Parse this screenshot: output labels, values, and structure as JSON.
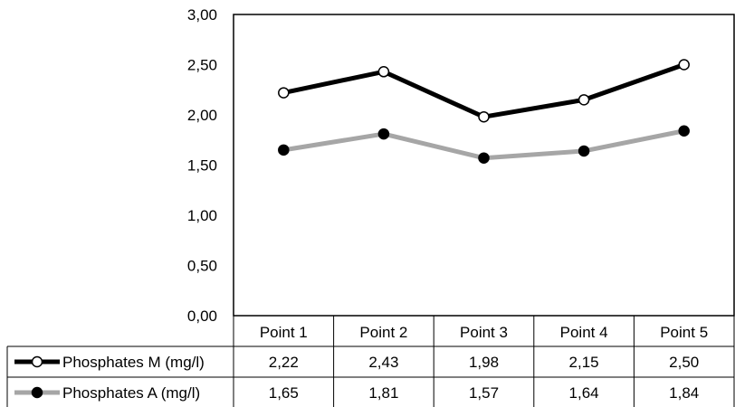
{
  "chart_data": {
    "type": "line",
    "title": "",
    "xlabel": "",
    "ylabel": "",
    "categories": [
      "Point  1",
      "Point  2",
      "Point  3",
      "Point  4",
      "Point  5"
    ],
    "ylim": [
      0,
      3
    ],
    "yticks": [
      "0,00",
      "0,50",
      "1,00",
      "1,50",
      "2,00",
      "2,50",
      "3,00"
    ],
    "ytick_values": [
      0,
      0.5,
      1,
      1.5,
      2,
      2.5,
      3
    ],
    "grid": false,
    "legend": "data-table",
    "series": [
      {
        "name": "Phosphates M (mg/l)",
        "values": [
          2.22,
          2.43,
          1.98,
          2.15,
          2.5
        ],
        "labels": [
          "2,22",
          "2,43",
          "1,98",
          "2,15",
          "2,50"
        ],
        "line_color": "#000000",
        "marker_fill": "#ffffff",
        "marker_stroke": "#000000"
      },
      {
        "name": "Phosphates A (mg/l)",
        "values": [
          1.65,
          1.81,
          1.57,
          1.64,
          1.84
        ],
        "labels": [
          "1,65",
          "1,81",
          "1,57",
          "1,64",
          "1,84"
        ],
        "line_color": "#a6a6a6",
        "marker_fill": "#000000",
        "marker_stroke": "#000000"
      }
    ]
  }
}
